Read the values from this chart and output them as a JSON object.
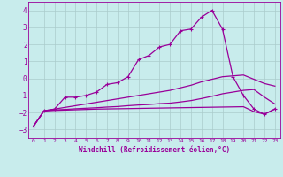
{
  "xlabel": "Windchill (Refroidissement éolien,°C)",
  "bg_color": "#c8ecec",
  "line_color": "#990099",
  "grid_color": "#aacccc",
  "xlim": [
    -0.5,
    23.5
  ],
  "ylim": [
    -3.5,
    4.5
  ],
  "xticks": [
    0,
    1,
    2,
    3,
    4,
    5,
    6,
    7,
    8,
    9,
    10,
    11,
    12,
    13,
    14,
    15,
    16,
    17,
    18,
    19,
    20,
    21,
    22,
    23
  ],
  "yticks": [
    -3,
    -2,
    -1,
    0,
    1,
    2,
    3,
    4
  ],
  "line1_x": [
    0,
    1,
    2,
    3,
    4,
    5,
    6,
    7,
    8,
    9,
    10,
    11,
    12,
    13,
    14,
    15,
    16,
    17,
    18,
    19,
    20,
    21,
    22,
    23
  ],
  "line1_y": [
    -2.8,
    -1.9,
    -1.8,
    -1.1,
    -1.1,
    -1.0,
    -0.8,
    -0.35,
    -0.25,
    0.1,
    1.1,
    1.35,
    1.85,
    2.0,
    2.8,
    2.9,
    3.6,
    4.0,
    2.9,
    0.1,
    -1.0,
    -1.8,
    -2.1,
    -1.8
  ],
  "line2_x": [
    0,
    1,
    2,
    3,
    4,
    5,
    6,
    7,
    8,
    9,
    10,
    11,
    12,
    13,
    14,
    15,
    16,
    17,
    18,
    19,
    20,
    21,
    22,
    23
  ],
  "line2_y": [
    -2.8,
    -1.9,
    -1.8,
    -1.7,
    -1.6,
    -1.5,
    -1.4,
    -1.3,
    -1.2,
    -1.1,
    -1.0,
    -0.9,
    -0.8,
    -0.7,
    -0.55,
    -0.4,
    -0.2,
    -0.05,
    0.1,
    0.15,
    0.2,
    -0.05,
    -0.3,
    -0.45
  ],
  "line3_x": [
    0,
    1,
    2,
    3,
    4,
    5,
    6,
    7,
    8,
    9,
    10,
    11,
    12,
    13,
    14,
    15,
    16,
    17,
    18,
    19,
    20,
    21,
    22,
    23
  ],
  "line3_y": [
    -2.8,
    -1.9,
    -1.85,
    -1.82,
    -1.78,
    -1.75,
    -1.72,
    -1.68,
    -1.65,
    -1.6,
    -1.56,
    -1.53,
    -1.48,
    -1.45,
    -1.38,
    -1.3,
    -1.18,
    -1.05,
    -0.9,
    -0.8,
    -0.7,
    -0.65,
    -1.1,
    -1.5
  ],
  "line4_x": [
    0,
    1,
    2,
    3,
    4,
    5,
    6,
    7,
    8,
    9,
    10,
    11,
    12,
    13,
    14,
    15,
    16,
    17,
    18,
    19,
    20,
    21,
    22,
    23
  ],
  "line4_y": [
    -2.8,
    -1.9,
    -1.88,
    -1.86,
    -1.84,
    -1.82,
    -1.8,
    -1.79,
    -1.78,
    -1.77,
    -1.76,
    -1.75,
    -1.74,
    -1.73,
    -1.72,
    -1.71,
    -1.7,
    -1.69,
    -1.68,
    -1.67,
    -1.66,
    -1.95,
    -2.1,
    -1.78
  ]
}
